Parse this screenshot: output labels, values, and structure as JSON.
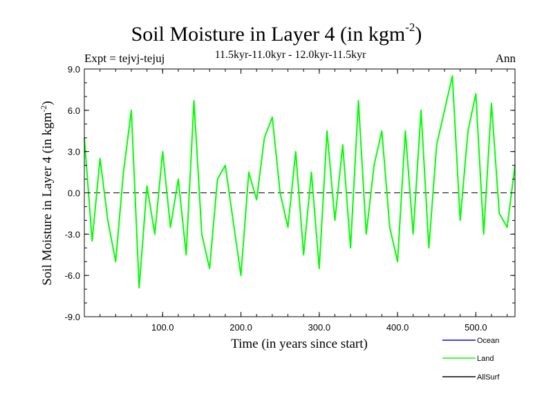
{
  "title": {
    "main": "Soil Moisture in Layer 4 (in kgm",
    "sup": "-2",
    "close": ")"
  },
  "header": {
    "expt": "Expt = tejvj-tejuj",
    "subtitle": "11.5kyr-11.0kyr - 12.0kyr-11.5kyr",
    "season": "Ann"
  },
  "chart_data": {
    "type": "line",
    "title": "Soil Moisture in Layer 4 (in kgm-2)",
    "xlabel": "Time (in years since start)",
    "ylabel": "Soil Moisture in Layer 4 (in kgm-2)",
    "xlim": [
      0,
      550
    ],
    "ylim": [
      -9,
      9
    ],
    "xticks": [
      100,
      200,
      300,
      400,
      500
    ],
    "xtick_labels": [
      "100.0",
      "200.0",
      "300.0",
      "400.0",
      "500.0"
    ],
    "yticks": [
      -9,
      -6,
      -3,
      0,
      3,
      6,
      9
    ],
    "ytick_labels": [
      "-9.0",
      "-6.0",
      "-3.0",
      "0.0",
      "3.0",
      "6.0",
      "9.0"
    ],
    "zero_line": "dashed",
    "legend": [
      {
        "label": "Ocean",
        "color": "#0000ff"
      },
      {
        "label": "Land",
        "color": "#00ff00"
      },
      {
        "label": "AllSurf",
        "color": "#000000"
      }
    ],
    "series": [
      {
        "name": "Land",
        "color": "#00ff00",
        "x": [
          0,
          10,
          20,
          30,
          40,
          50,
          60,
          70,
          80,
          90,
          100,
          110,
          120,
          130,
          140,
          150,
          160,
          170,
          180,
          190,
          200,
          210,
          220,
          230,
          240,
          250,
          260,
          270,
          280,
          290,
          300,
          310,
          320,
          330,
          340,
          350,
          360,
          370,
          380,
          390,
          400,
          410,
          420,
          430,
          440,
          450,
          460,
          470,
          480,
          490,
          500,
          510,
          520,
          530,
          540,
          550
        ],
        "values": [
          4.0,
          -3.5,
          2.5,
          -2.0,
          -5.0,
          1.5,
          6.0,
          -6.9,
          0.5,
          -3.0,
          3.0,
          -2.5,
          1.0,
          -4.5,
          6.7,
          -3.0,
          -5.5,
          1.0,
          2.0,
          -2.0,
          -6.0,
          1.5,
          -0.5,
          4.0,
          5.5,
          0.0,
          -2.5,
          3.0,
          -4.5,
          1.5,
          -5.5,
          4.5,
          -2.0,
          3.5,
          -4.0,
          6.7,
          -3.0,
          2.0,
          4.5,
          -2.5,
          -5.0,
          4.5,
          -3.0,
          6.0,
          -4.0,
          3.5,
          6.0,
          8.5,
          -2.0,
          4.5,
          7.2,
          -3.0,
          6.5,
          -1.5,
          -2.5,
          2.0
        ]
      }
    ]
  }
}
